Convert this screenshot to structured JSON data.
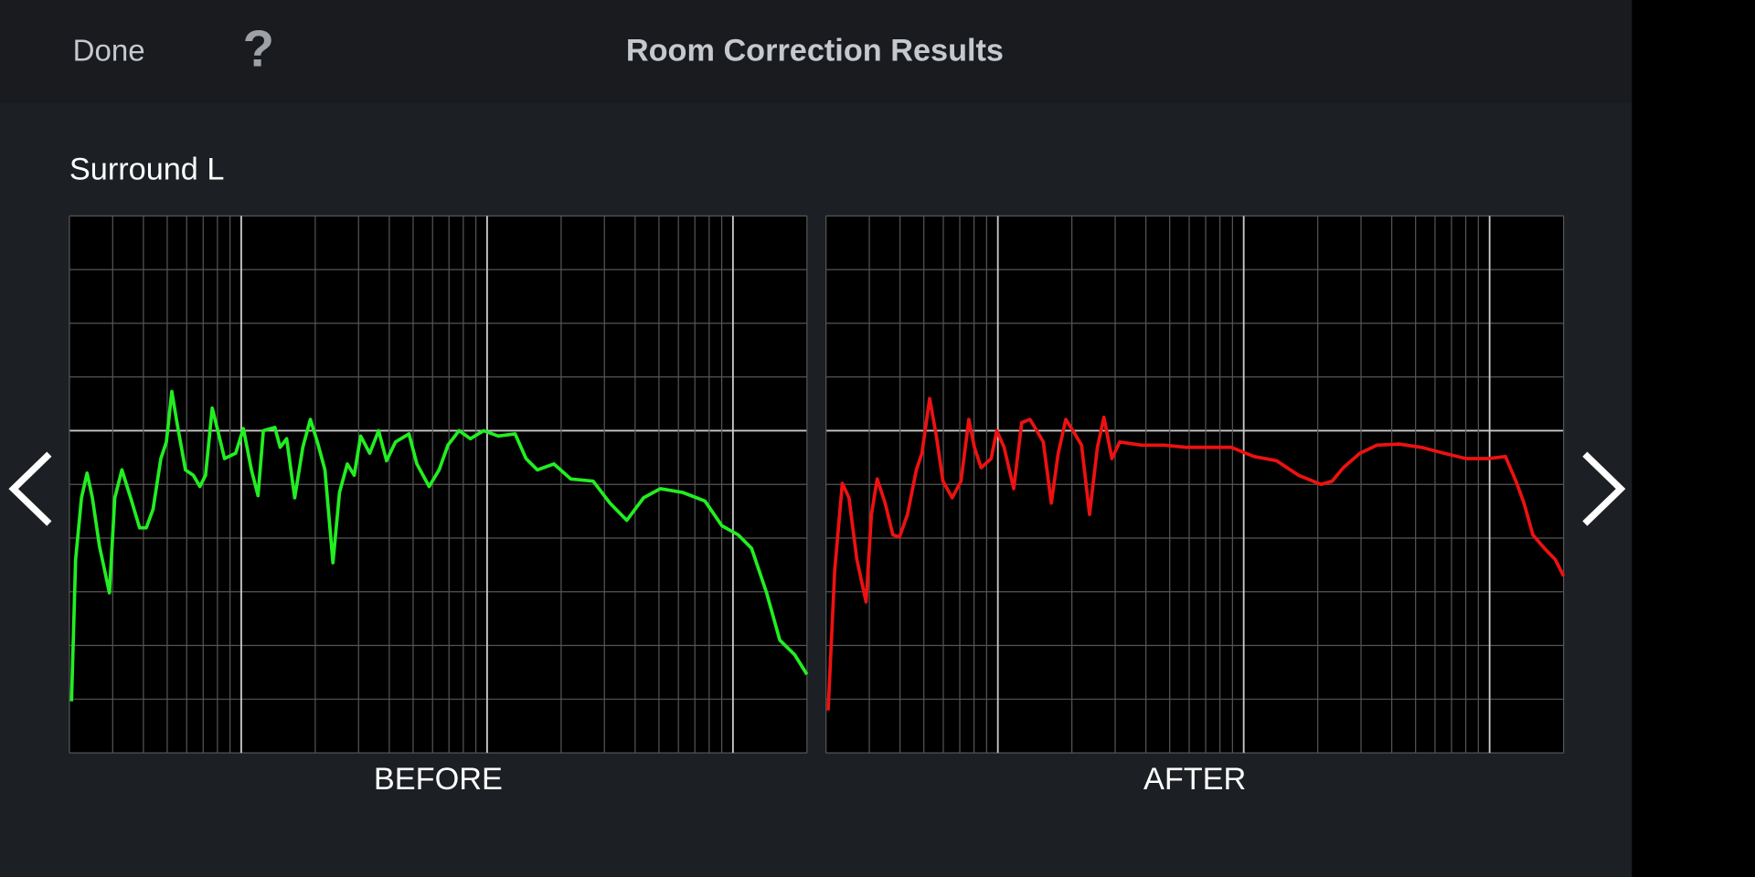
{
  "header": {
    "done": "Done",
    "help": "?",
    "title": "Room Correction Results"
  },
  "channel": "Surround L",
  "chart_data": [
    {
      "type": "line",
      "title": "BEFORE",
      "log_x": true,
      "grid": true,
      "reference_y": 6,
      "xlim": [
        20,
        20000
      ],
      "ylim": [
        0,
        10
      ],
      "xticks": [
        20,
        30,
        40,
        50,
        60,
        70,
        80,
        90,
        100,
        200,
        300,
        400,
        500,
        600,
        700,
        800,
        900,
        1000,
        2000,
        3000,
        4000,
        5000,
        6000,
        7000,
        8000,
        9000,
        10000,
        20000
      ],
      "yticks": [
        0,
        1,
        2,
        3,
        4,
        5,
        6,
        7,
        8,
        9,
        10
      ],
      "x": [
        20.4,
        21.2,
        22.4,
        23.6,
        24.8,
        26.5,
        29.1,
        30.6,
        32.7,
        35.5,
        38.6,
        41.1,
        43.8,
        47.1,
        49.6,
        52.2,
        55,
        59.3,
        63.8,
        67.9,
        71.6,
        76.2,
        80.3,
        85.5,
        94.9,
        102,
        110,
        117,
        123,
        137,
        144,
        153,
        165,
        178,
        191,
        204,
        219,
        236,
        251,
        270,
        288,
        306,
        333,
        362,
        390,
        424,
        481,
        518,
        581,
        638,
        693,
        769,
        855,
        968,
        1110,
        1300,
        1440,
        1600,
        1870,
        2190,
        2700,
        3160,
        3700,
        4330,
        5070,
        6240,
        7690,
        9010,
        10500,
        11900,
        13700,
        15500,
        17800,
        20000
      ],
      "series": [
        {
          "color": "#22ee22",
          "values": [
            0.96,
            3.6,
            4.75,
            5.21,
            4.75,
            3.85,
            2.98,
            4.75,
            5.27,
            4.75,
            4.19,
            4.19,
            4.54,
            5.48,
            5.79,
            6.73,
            6.1,
            5.27,
            5.17,
            4.96,
            5.17,
            6.42,
            6.0,
            5.48,
            5.58,
            6.04,
            5.27,
            4.79,
            6.0,
            6.06,
            5.69,
            5.85,
            4.75,
            5.69,
            6.21,
            5.79,
            5.27,
            3.54,
            4.85,
            5.38,
            5.17,
            5.9,
            5.58,
            6.0,
            5.44,
            5.79,
            5.94,
            5.38,
            4.96,
            5.27,
            5.73,
            6.0,
            5.85,
            6.0,
            5.9,
            5.94,
            5.48,
            5.27,
            5.38,
            5.1,
            5.06,
            4.65,
            4.33,
            4.75,
            4.92,
            4.85,
            4.69,
            4.23,
            4.06,
            3.81,
            2.98,
            2.1,
            1.83,
            1.46
          ]
        }
      ]
    },
    {
      "type": "line",
      "title": "AFTER",
      "log_x": true,
      "grid": true,
      "reference_y": 6,
      "xlim": [
        20,
        20000
      ],
      "ylim": [
        0,
        10
      ],
      "xticks": [
        20,
        30,
        40,
        50,
        60,
        70,
        80,
        90,
        100,
        200,
        300,
        400,
        500,
        600,
        700,
        800,
        900,
        1000,
        2000,
        3000,
        4000,
        5000,
        6000,
        7000,
        8000,
        9000,
        10000,
        20000
      ],
      "yticks": [
        0,
        1,
        2,
        3,
        4,
        5,
        6,
        7,
        8,
        9,
        10
      ],
      "x": [
        20.4,
        21.7,
        23.3,
        24.8,
        26.7,
        29.1,
        30.6,
        32.3,
        34.8,
        37.4,
        39.8,
        42.9,
        46.6,
        49.1,
        52.8,
        56.2,
        59.8,
        65.2,
        70.8,
        76.2,
        80.3,
        85.5,
        93.9,
        98.9,
        106,
        116,
        125,
        135,
        144,
        153,
        165,
        176,
        189,
        202,
        219,
        236,
        254,
        270,
        291,
        313,
        385,
        475,
        586,
        723,
        891,
        1100,
        1360,
        1670,
        2060,
        2290,
        2540,
        2970,
        3480,
        4290,
        5280,
        6520,
        8030,
        9890,
        11600,
        12800,
        13800,
        15000,
        16700,
        18500,
        20000
      ],
      "series": [
        {
          "color": "#ee1111",
          "values": [
            0.79,
            3.4,
            5.02,
            4.75,
            3.6,
            2.81,
            4.44,
            5.1,
            4.65,
            4.06,
            4.02,
            4.44,
            5.27,
            5.58,
            6.6,
            5.9,
            5.06,
            4.75,
            5.06,
            6.21,
            5.69,
            5.31,
            5.48,
            6.0,
            5.69,
            4.92,
            6.15,
            6.21,
            6.0,
            5.79,
            4.65,
            5.58,
            6.21,
            6.0,
            5.73,
            4.44,
            5.69,
            6.25,
            5.48,
            5.79,
            5.73,
            5.73,
            5.69,
            5.69,
            5.69,
            5.52,
            5.44,
            5.17,
            5.0,
            5.06,
            5.31,
            5.58,
            5.73,
            5.75,
            5.69,
            5.58,
            5.48,
            5.48,
            5.52,
            5.06,
            4.65,
            4.06,
            3.81,
            3.6,
            3.29
          ]
        }
      ]
    }
  ]
}
